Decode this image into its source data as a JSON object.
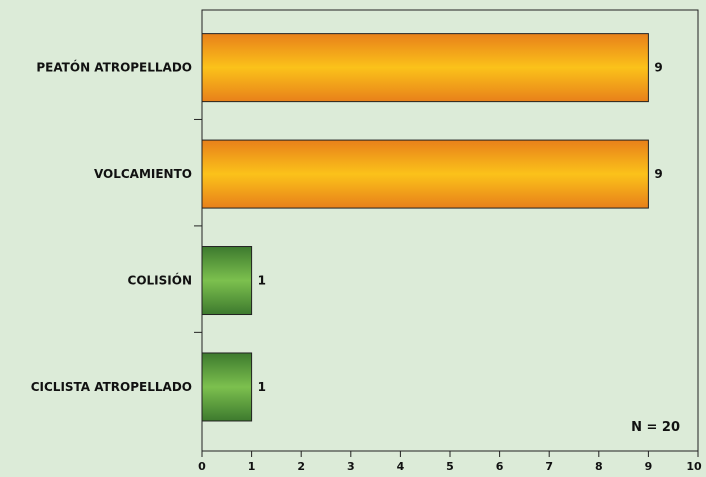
{
  "chart_data": {
    "type": "bar",
    "orientation": "horizontal",
    "categories": [
      "PEATÓN ATROPELLADO",
      "VOLCAMIENTO",
      "COLISIÓN",
      "CICLISTA ATROPELLADO"
    ],
    "values": [
      9,
      9,
      1,
      1
    ],
    "bar_colors": [
      "#f7a51e",
      "#f7a51e",
      "#6ab04c",
      "#6ab04c"
    ],
    "data_labels": [
      "9",
      "9",
      "1",
      "1"
    ],
    "xlim": [
      0,
      10
    ],
    "x_ticks": [
      "0",
      "1",
      "2",
      "3",
      "4",
      "5",
      "6",
      "7",
      "8",
      "9",
      "10"
    ],
    "annotation": "N = 20",
    "title": "",
    "xlabel": "",
    "ylabel": "",
    "grid": false
  }
}
